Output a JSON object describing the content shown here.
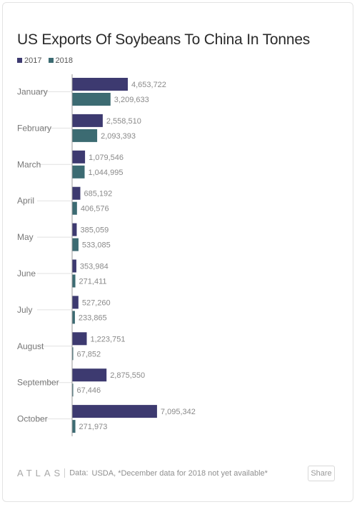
{
  "chart_data": {
    "type": "bar",
    "orientation": "horizontal",
    "title": "US Exports Of Soybeans To China In Tonnes",
    "categories": [
      "January",
      "February",
      "March",
      "April",
      "May",
      "June",
      "July",
      "August",
      "September",
      "October"
    ],
    "series": [
      {
        "name": "2017",
        "color": "#3d3a70",
        "values": [
          4653722,
          2558510,
          1079546,
          685192,
          385059,
          353984,
          527260,
          1223751,
          2875550,
          7095342
        ],
        "value_labels": [
          "4,653,722",
          "2,558,510",
          "1,079,546",
          "685,192",
          "385,059",
          "353,984",
          "527,260",
          "1,223,751",
          "2,875,550",
          "7,095,342"
        ]
      },
      {
        "name": "2018",
        "color": "#3c6b72",
        "values": [
          3209633,
          2093393,
          1044995,
          406576,
          533085,
          271411,
          233865,
          67852,
          67446,
          271973
        ],
        "value_labels": [
          "3,209,633",
          "2,093,393",
          "1,044,995",
          "406,576",
          "533,085",
          "271,411",
          "233,865",
          "67,852",
          "67,446",
          "271,973"
        ]
      }
    ],
    "xlim": [
      0,
      7100000
    ],
    "grid": false,
    "legend_position": "top-left"
  },
  "footer": {
    "brand": "ATLAS",
    "source_label": "Data:",
    "source_text": "USDA, *December data for 2018 not yet available*",
    "share_label": "Share"
  },
  "colors": {
    "text": "#2a2a2a",
    "muted": "#8f8f8f",
    "axis": "#9a9a9a"
  }
}
